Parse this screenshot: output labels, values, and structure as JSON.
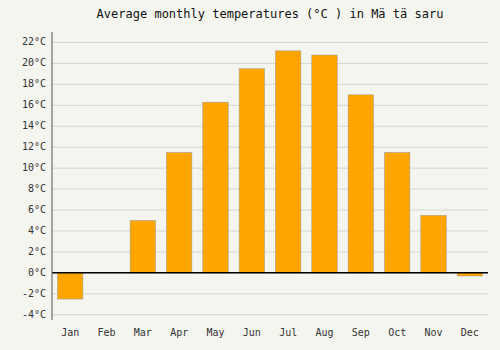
{
  "chart_data": {
    "type": "bar",
    "title": "Average monthly temperatures (°C ) in Mä tä saru",
    "categories": [
      "Jan",
      "Feb",
      "Mar",
      "Apr",
      "May",
      "Jun",
      "Jul",
      "Aug",
      "Sep",
      "Oct",
      "Nov",
      "Dec"
    ],
    "values": [
      -2.5,
      0,
      5,
      11.5,
      16.3,
      19.5,
      21.2,
      20.8,
      17,
      11.5,
      5.5,
      -0.3
    ],
    "color": "#FFA500",
    "ylim": [
      -4.5,
      23
    ],
    "yticks": [
      {
        "value": -4,
        "label": "-4°C"
      },
      {
        "value": -2,
        "label": "-2°C"
      },
      {
        "value": 0,
        "label": "0°C"
      },
      {
        "value": 2,
        "label": "2°C"
      },
      {
        "value": 4,
        "label": "4°C"
      },
      {
        "value": 6,
        "label": "6°C"
      },
      {
        "value": 8,
        "label": "8°C"
      },
      {
        "value": 10,
        "label": "10°C"
      },
      {
        "value": 12,
        "label": "12°C"
      },
      {
        "value": 14,
        "label": "14°C"
      },
      {
        "value": 16,
        "label": "16°C"
      },
      {
        "value": 18,
        "label": "18°C"
      },
      {
        "value": 20,
        "label": "20°C"
      },
      {
        "value": 22,
        "label": "22°C"
      }
    ],
    "grid": true
  }
}
